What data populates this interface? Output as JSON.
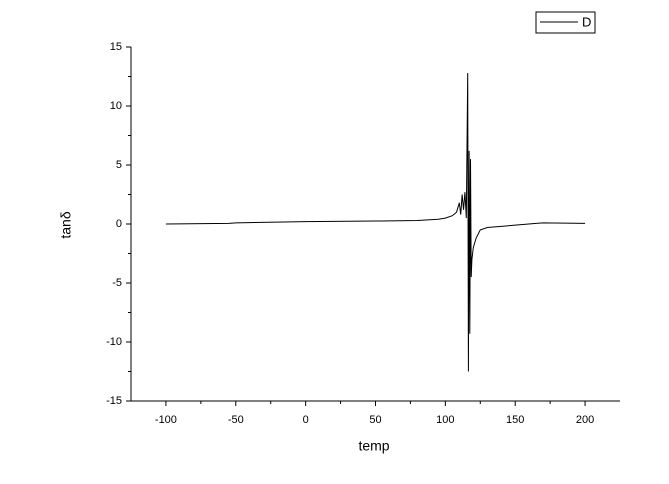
{
  "chart_data": {
    "type": "line",
    "x_label": "temp",
    "y_label": "tanδ",
    "x": [
      -100,
      -55,
      -50,
      0,
      50,
      80,
      95,
      100,
      105,
      108,
      110,
      111,
      112,
      113,
      114,
      115,
      116,
      116.5,
      117,
      117.5,
      118,
      118.5,
      119,
      120,
      122,
      125,
      130,
      150,
      165,
      170,
      200
    ],
    "series": [
      {
        "name": "D",
        "color": "#000000",
        "values": [
          0.0,
          0.05,
          0.1,
          0.2,
          0.25,
          0.3,
          0.4,
          0.5,
          0.7,
          1.0,
          1.8,
          0.8,
          2.5,
          1.2,
          2.7,
          0.5,
          12.8,
          -12.5,
          6.2,
          -9.3,
          5.5,
          -4.5,
          -3.0,
          -2.0,
          -1.2,
          -0.5,
          -0.3,
          -0.1,
          0.05,
          0.1,
          0.05
        ]
      }
    ],
    "xlim": [
      -125,
      225
    ],
    "xticks": [
      -100,
      -50,
      0,
      50,
      100,
      150,
      200
    ],
    "ylim": [
      -15,
      15
    ],
    "yticks": [
      -15,
      -10,
      -5,
      0,
      5,
      10,
      15
    ],
    "legend": "upper right",
    "grid": false
  }
}
